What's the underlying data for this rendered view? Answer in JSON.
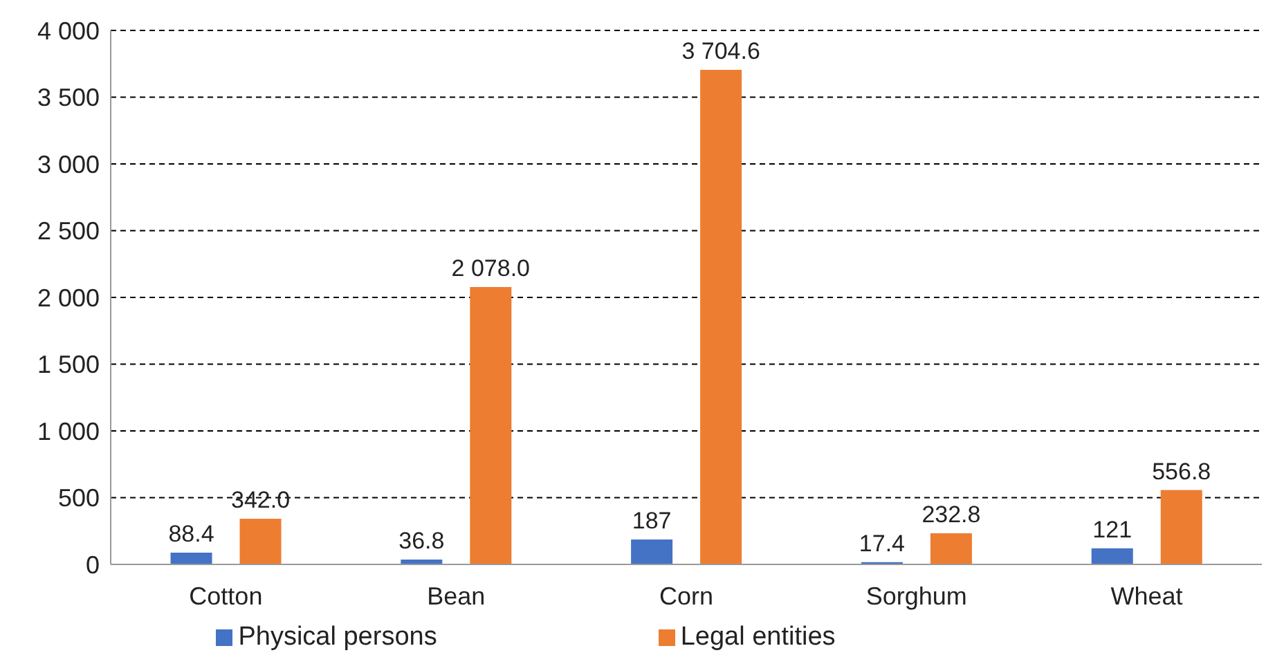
{
  "chart_data": {
    "type": "bar",
    "categories": [
      "Cotton",
      "Bean",
      "Corn",
      "Sorghum",
      "Wheat"
    ],
    "series": [
      {
        "name": "Physical persons",
        "color": "#4472c4",
        "values": [
          88.4,
          36.8,
          187,
          17.4,
          121
        ],
        "value_labels": [
          "88.4",
          "36.8",
          "187",
          "17.4",
          "121"
        ]
      },
      {
        "name": "Legal entities",
        "color": "#ed7d31",
        "values": [
          342.0,
          2078.0,
          3704.6,
          232.8,
          556.8
        ],
        "value_labels": [
          "342.0",
          "2 078.0",
          "3 704.6",
          "232.8",
          "556.8"
        ]
      }
    ],
    "ylim": [
      0,
      4000
    ],
    "yticks": [
      0,
      {
        "value": 500,
        "label": "500"
      },
      {
        "value": 1000,
        "label": "1 000"
      },
      {
        "value": 1500,
        "label": "1 500"
      },
      {
        "value": 2000,
        "label": "2 000"
      },
      {
        "value": 2500,
        "label": "2 500"
      },
      {
        "value": 3000,
        "label": "3 000"
      },
      {
        "value": 3500,
        "label": "3 500"
      },
      {
        "value": 4000,
        "label": "4 000"
      }
    ],
    "grid": "y",
    "legend": "bottom"
  }
}
